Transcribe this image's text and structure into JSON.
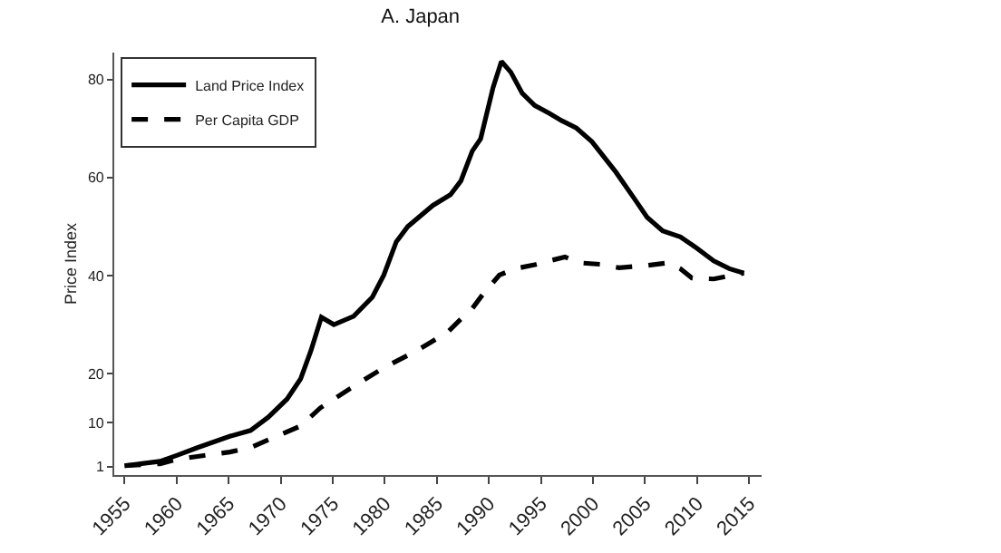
{
  "chart_data": {
    "type": "line",
    "title": "A. Japan",
    "ylabel": "Price Index",
    "xlim": [
      1954,
      2016.2
    ],
    "xticks": [
      1955,
      1960,
      1965,
      1970,
      1975,
      1980,
      1985,
      1990,
      1995,
      2000,
      2005,
      2010,
      2015
    ],
    "ylim": [
      -0.7,
      85.5
    ],
    "yticks": [
      1,
      10,
      20,
      40,
      60,
      80
    ],
    "grid": false,
    "legend": "top left",
    "marker": "none",
    "series": [
      {
        "name": "Land Price Index",
        "color": "#000000",
        "line_style": "solid",
        "x": [
          1955,
          1958.4,
          1960,
          1962,
          1965.1,
          1967.1,
          1968.8,
          1970.6,
          1971.9,
          1972.9,
          1973.9,
          1975.1,
          1977,
          1978.8,
          1979.9,
          1981.1,
          1982.2,
          1984.6,
          1986.3,
          1987.3,
          1988.4,
          1989.2,
          1990.4,
          1991.2,
          1992.1,
          1993.2,
          1994.4,
          1995.8,
          1997,
          1998.4,
          1999.9,
          2002.2,
          2004,
          2005.2,
          2006.7,
          2008.4,
          2009.9,
          2011.6,
          2013.1,
          2014.5
        ],
        "values": [
          1.2,
          2.1,
          3.3,
          4.9,
          7.2,
          8.4,
          11.1,
          14.8,
          18.9,
          24.7,
          31.5,
          30,
          31.7,
          35.6,
          40.1,
          46.9,
          50,
          54.3,
          56.5,
          59.3,
          65.4,
          67.9,
          78.4,
          83.7,
          81.5,
          77.2,
          74.7,
          73.1,
          71.6,
          70.1,
          67.3,
          61.1,
          55.6,
          51.9,
          49.1,
          47.9,
          45.7,
          43,
          41.4,
          40.5
        ]
      },
      {
        "name": "Per Capita GDP",
        "color": "#000000",
        "line_style": "dashed",
        "x": [
          1955,
          1958.4,
          1960,
          1962,
          1965.1,
          1967.1,
          1969.8,
          1971.9,
          1973.8,
          1976.7,
          1979.9,
          1983.1,
          1986,
          1987.2,
          1988.4,
          1989.5,
          1991,
          1992.5,
          1994.4,
          1995.8,
          1997.3,
          1998.7,
          2000.7,
          2002.5,
          2004.9,
          2007.2,
          2008.4,
          2009.5,
          2011.6,
          2013.4,
          2014.5
        ],
        "values": [
          1.2,
          1.6,
          2.5,
          3.1,
          4,
          4.9,
          7.4,
          9.3,
          13,
          17,
          21.2,
          24.7,
          28.4,
          30.9,
          33.3,
          36.4,
          40.1,
          41.4,
          42.2,
          43,
          43.8,
          42.6,
          42.3,
          41.6,
          42,
          42.6,
          41.4,
          39.5,
          39.3,
          40.1,
          40.5
        ]
      }
    ]
  }
}
